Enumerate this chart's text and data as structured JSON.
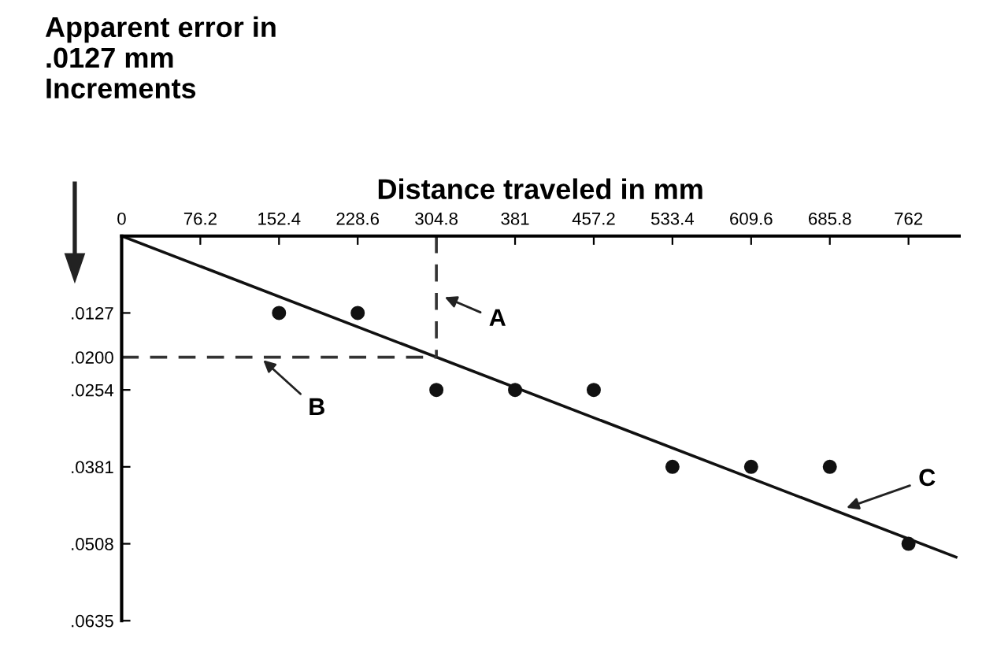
{
  "chart_data": {
    "type": "scatter",
    "xlabel": "Distance traveled in mm",
    "ylabel": "Apparent error in\n.0127 mm\nIncrements",
    "x": [
      152.4,
      228.6,
      304.8,
      381,
      457.2,
      533.4,
      609.6,
      685.8,
      762
    ],
    "series": [
      {
        "color": "#111111",
        "marker": "circle",
        "values": [
          0.0127,
          0.0127,
          0.0254,
          0.0254,
          0.0254,
          0.0381,
          0.0381,
          0.0381,
          0.0508
        ]
      },
      {
        "type": "line",
        "color": "#111111",
        "line_style": "solid",
        "x": [
          0,
          808
        ],
        "values": [
          0,
          0.053
        ]
      },
      {
        "type": "line",
        "color": "#333333",
        "line_style": "dashed",
        "x": [
          304.8,
          304.8
        ],
        "values": [
          0,
          0.02
        ]
      },
      {
        "type": "line",
        "color": "#333333",
        "line_style": "dashed",
        "x": [
          0,
          304.8
        ],
        "values": [
          0.02,
          0.02
        ]
      }
    ],
    "xlim": [
      0,
      811
    ],
    "ylim": [
      0.0635,
      0
    ],
    "xticks": [
      0,
      76.2,
      152.4,
      228.6,
      304.8,
      381,
      457.2,
      533.4,
      609.6,
      685.8,
      762
    ],
    "yticks": [
      {
        "value": 0.0127,
        "label": ".0127"
      },
      {
        "value": 0.02,
        "label": ".0200"
      },
      {
        "value": 0.0254,
        "label": ".0254"
      },
      {
        "value": 0.0381,
        "label": ".0381"
      },
      {
        "value": 0.0508,
        "label": ".0508"
      },
      {
        "value": 0.0635,
        "label": ".0635"
      }
    ],
    "annotations": [
      {
        "text": "A",
        "x": 309,
        "y": 0.0098
      },
      {
        "text": "B",
        "x": 134,
        "y": 0.02
      },
      {
        "text": "C",
        "x": 698,
        "y": 0.0451
      }
    ],
    "grid": false,
    "legend": false
  }
}
